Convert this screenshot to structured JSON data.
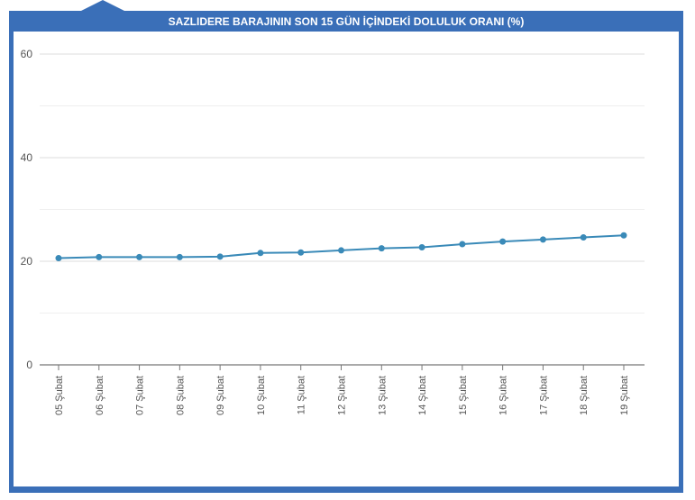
{
  "chart_data": {
    "type": "line",
    "title": "SAZLIDERE BARAJININ SON 15 GÜN İÇİNDEKİ DOLULUK ORANI (%)",
    "xlabel": "",
    "ylabel": "",
    "ylim": [
      0,
      60
    ],
    "yticks": [
      0,
      20,
      40,
      60
    ],
    "grid": true,
    "line_color": "#3a8ab8",
    "frame_color": "#3a6fb8",
    "categories": [
      "05 Şubat",
      "06 Şubat",
      "07 Şubat",
      "08 Şubat",
      "09 Şubat",
      "10 Şubat",
      "11 Şubat",
      "12 Şubat",
      "13 Şubat",
      "14 Şubat",
      "15 Şubat",
      "16 Şubat",
      "17 Şubat",
      "18 Şubat",
      "19 Şubat"
    ],
    "values": [
      20.6,
      20.8,
      20.8,
      20.8,
      20.9,
      21.6,
      21.7,
      22.1,
      22.5,
      22.7,
      23.3,
      23.8,
      24.2,
      24.6,
      25.0
    ]
  }
}
